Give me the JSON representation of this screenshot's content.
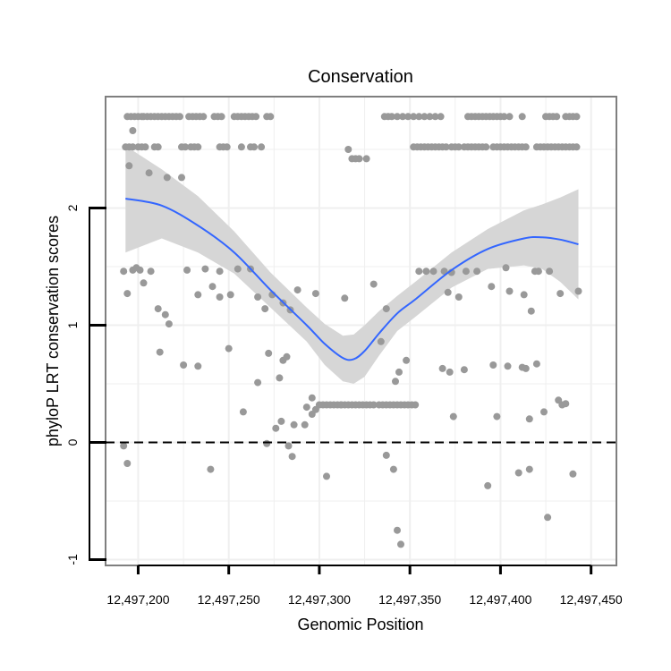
{
  "chart_data": {
    "type": "scatter",
    "title": "Conservation",
    "xlabel": "Genomic Position",
    "ylabel": "phyloP LRT conservation scores",
    "xlim": [
      12497182,
      12497464
    ],
    "ylim": [
      -1.05,
      2.95
    ],
    "x_ticks": [
      12497200,
      12497250,
      12497300,
      12497350,
      12497400,
      12497450
    ],
    "x_tick_labels": [
      "12,497,200",
      "12,497,250",
      "12,497,300",
      "12,497,350",
      "12,497,400",
      "12,497,450"
    ],
    "y_ticks": [
      -1,
      0,
      1,
      2
    ],
    "y_tick_labels": [
      "-1",
      "0",
      "1",
      "2"
    ],
    "reference_line": {
      "y": 0,
      "style": "dashed",
      "color": "#000000"
    },
    "smooth": {
      "method": "loess",
      "color": "#3366ff",
      "band_color": "#d6d6d6",
      "x": [
        12497193,
        12497213,
        12497233,
        12497253,
        12497273,
        12497293,
        12497303,
        12497313,
        12497319,
        12497325,
        12497333,
        12497343,
        12497353,
        12497373,
        12497393,
        12497413,
        12497423,
        12497433,
        12497443
      ],
      "y": [
        2.08,
        2.02,
        1.85,
        1.62,
        1.3,
        1.0,
        0.84,
        0.72,
        0.71,
        0.78,
        0.93,
        1.1,
        1.22,
        1.47,
        1.65,
        1.74,
        1.75,
        1.73,
        1.69
      ],
      "lower": [
        1.62,
        1.74,
        1.62,
        1.44,
        1.15,
        0.86,
        0.66,
        0.52,
        0.5,
        0.56,
        0.74,
        0.95,
        1.07,
        1.32,
        1.48,
        1.51,
        1.48,
        1.37,
        1.22
      ],
      "upper": [
        2.53,
        2.33,
        2.1,
        1.8,
        1.45,
        1.15,
        1.01,
        0.91,
        0.92,
        1.0,
        1.12,
        1.25,
        1.37,
        1.62,
        1.82,
        1.98,
        2.03,
        2.09,
        2.16
      ]
    },
    "points": {
      "color": "#999999",
      "x": [
        12497194,
        12497196,
        12497198,
        12497200,
        12497202,
        12497203,
        12497205,
        12497207,
        12497209,
        12497211,
        12497213,
        12497215,
        12497217,
        12497219,
        12497221,
        12497223,
        12497228,
        12497230,
        12497232,
        12497234,
        12497236,
        12497242,
        12497244,
        12497246,
        12497253,
        12497255,
        12497257,
        12497259,
        12497261,
        12497263,
        12497265,
        12497271,
        12497273,
        12497193,
        12497195,
        12497197,
        12497200,
        12497202,
        12497204,
        12497209,
        12497211,
        12497224,
        12497226,
        12497229,
        12497231,
        12497233,
        12497245,
        12497247,
        12497249,
        12497257,
        12497262,
        12497264,
        12497268,
        12497195,
        12497197,
        12497206,
        12497216,
        12497224,
        12497336,
        12497338,
        12497340,
        12497343,
        12497346,
        12497349,
        12497352,
        12497355,
        12497358,
        12497361,
        12497364,
        12497367,
        12497382,
        12497384,
        12497386,
        12497388,
        12497390,
        12497392,
        12497394,
        12497396,
        12497398,
        12497400,
        12497402,
        12497405,
        12497412,
        12497425,
        12497427,
        12497429,
        12497431,
        12497436,
        12497438,
        12497440,
        12497442,
        12497352,
        12497354,
        12497356,
        12497358,
        12497360,
        12497362,
        12497364,
        12497366,
        12497368,
        12497370,
        12497373,
        12497375,
        12497377,
        12497380,
        12497382,
        12497384,
        12497386,
        12497388,
        12497390,
        12497392,
        12497396,
        12497398,
        12497400,
        12497402,
        12497404,
        12497406,
        12497408,
        12497410,
        12497412,
        12497414,
        12497420,
        12497422,
        12497424,
        12497426,
        12497428,
        12497430,
        12497432,
        12497434,
        12497436,
        12497438,
        12497440,
        12497442,
        12497312,
        12497314,
        12497316,
        12497318,
        12497320,
        12497322,
        12497324,
        12497326,
        12497328,
        12497330,
        12497333,
        12497335,
        12497337,
        12497339,
        12497341,
        12497343,
        12497345,
        12497347,
        12497349,
        12497351,
        12497353,
        12497300,
        12497302,
        12497304,
        12497306,
        12497308,
        12497310,
        12497312,
        12497293,
        12497296,
        12497298,
        12497192,
        12497197,
        12497199,
        12497201,
        12497203,
        12497207,
        12497211,
        12497215,
        12497227,
        12497233,
        12497237,
        12497241,
        12497245,
        12497251,
        12497255,
        12497262,
        12497266,
        12497270,
        12497274,
        12497280,
        12497284,
        12497288,
        12497298,
        12497314,
        12497316,
        12497318,
        12497320,
        12497322,
        12497326,
        12497330,
        12497337,
        12497355,
        12497359,
        12497363,
        12497369,
        12497371,
        12497373,
        12497377,
        12497381,
        12497387,
        12497395,
        12497403,
        12497405,
        12497413,
        12497417,
        12497419,
        12497421,
        12497427,
        12497433,
        12497443,
        12497194,
        12497212,
        12497217,
        12497225,
        12497233,
        12497245,
        12497250,
        12497258,
        12497266,
        12497272,
        12497276,
        12497278,
        12497280,
        12497282,
        12497286,
        12497292,
        12497296,
        12497334,
        12497342,
        12497344,
        12497348,
        12497368,
        12497372,
        12497374,
        12497380,
        12497396,
        12497398,
        12497404,
        12497412,
        12497414,
        12497416,
        12497420,
        12497424,
        12497432,
        12497434,
        12497436,
        12497192,
        12497194,
        12497240,
        12497271,
        12497279,
        12497283,
        12497285,
        12497337,
        12497341,
        12497343,
        12497393,
        12497410,
        12497416,
        12497426,
        12497440,
        12497345,
        12497304
      ],
      "y": [
        2.78,
        2.78,
        2.78,
        2.78,
        2.78,
        2.78,
        2.78,
        2.78,
        2.78,
        2.78,
        2.78,
        2.78,
        2.78,
        2.78,
        2.78,
        2.78,
        2.78,
        2.78,
        2.78,
        2.78,
        2.78,
        2.78,
        2.78,
        2.78,
        2.78,
        2.78,
        2.78,
        2.78,
        2.78,
        2.78,
        2.78,
        2.78,
        2.78,
        2.52,
        2.52,
        2.52,
        2.52,
        2.52,
        2.52,
        2.52,
        2.52,
        2.52,
        2.52,
        2.52,
        2.52,
        2.52,
        2.52,
        2.52,
        2.52,
        2.52,
        2.52,
        2.52,
        2.52,
        2.36,
        2.66,
        2.3,
        2.26,
        2.26,
        2.78,
        2.78,
        2.78,
        2.78,
        2.78,
        2.78,
        2.78,
        2.78,
        2.78,
        2.78,
        2.78,
        2.78,
        2.78,
        2.78,
        2.78,
        2.78,
        2.78,
        2.78,
        2.78,
        2.78,
        2.78,
        2.78,
        2.78,
        2.78,
        2.78,
        2.78,
        2.78,
        2.78,
        2.78,
        2.78,
        2.78,
        2.78,
        2.78,
        2.52,
        2.52,
        2.52,
        2.52,
        2.52,
        2.52,
        2.52,
        2.52,
        2.52,
        2.52,
        2.52,
        2.52,
        2.52,
        2.52,
        2.52,
        2.52,
        2.52,
        2.52,
        2.52,
        2.52,
        2.52,
        2.52,
        2.52,
        2.52,
        2.52,
        2.52,
        2.52,
        2.52,
        2.52,
        2.52,
        2.52,
        2.52,
        2.52,
        2.52,
        2.52,
        2.52,
        2.52,
        2.52,
        2.52,
        2.52,
        2.52,
        2.52,
        0.32,
        0.32,
        0.32,
        0.32,
        0.32,
        0.32,
        0.32,
        0.32,
        0.32,
        0.32,
        0.32,
        0.32,
        0.32,
        0.32,
        0.32,
        0.32,
        0.32,
        0.32,
        0.32,
        0.32,
        0.32,
        0.32,
        0.32,
        0.32,
        0.32,
        0.32,
        0.32,
        0.32,
        0.3,
        0.24,
        0.28,
        1.46,
        1.47,
        1.49,
        1.47,
        1.36,
        1.46,
        1.14,
        1.09,
        1.47,
        1.26,
        1.48,
        1.33,
        1.46,
        1.26,
        1.48,
        1.48,
        1.24,
        1.14,
        1.26,
        1.19,
        1.13,
        1.3,
        1.27,
        1.23,
        2.5,
        2.42,
        2.42,
        2.42,
        2.42,
        1.35,
        1.14,
        1.46,
        1.46,
        1.46,
        1.46,
        1.28,
        1.45,
        1.24,
        1.46,
        1.46,
        1.33,
        1.49,
        1.29,
        1.26,
        1.12,
        1.46,
        1.46,
        1.46,
        1.27,
        1.29,
        1.27,
        0.77,
        1.01,
        0.66,
        0.65,
        1.24,
        0.8,
        0.26,
        0.51,
        0.76,
        0.12,
        0.55,
        0.7,
        0.73,
        0.15,
        0.15,
        0.38,
        0.86,
        0.52,
        0.6,
        0.7,
        0.63,
        0.6,
        0.22,
        0.62,
        0.66,
        0.22,
        0.65,
        0.64,
        0.63,
        0.2,
        0.67,
        0.26,
        0.36,
        0.32,
        0.33,
        -0.03,
        -0.18,
        -0.23,
        -0.01,
        0.18,
        -0.03,
        -0.12,
        -0.11,
        -0.23,
        -0.75,
        -0.37,
        -0.26,
        -0.23,
        -0.64,
        -0.27,
        -0.87,
        -0.29
      ]
    }
  }
}
